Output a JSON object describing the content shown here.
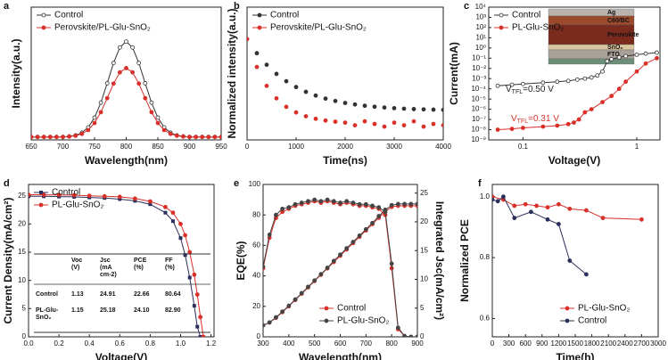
{
  "chart_data": [
    {
      "type": "line",
      "label": "a",
      "xlabel": "Wavelength(nm)",
      "ylabel": "Intensity(a.u.)",
      "xlim": [
        650,
        950
      ],
      "xticks": [
        650,
        700,
        750,
        800,
        850,
        900,
        950
      ],
      "ylim": [
        0,
        1.35
      ],
      "lines": true,
      "legend": "upper left",
      "x": [
        650,
        660,
        670,
        680,
        690,
        700,
        710,
        720,
        730,
        740,
        750,
        760,
        770,
        780,
        790,
        800,
        810,
        820,
        830,
        840,
        850,
        860,
        870,
        880,
        890,
        900,
        910,
        920,
        930,
        940,
        950
      ],
      "series": [
        {
          "name": "Control",
          "color": "#333333",
          "marker": "open-circle",
          "values": [
            0.03,
            0.03,
            0.03,
            0.03,
            0.03,
            0.03,
            0.036,
            0.046,
            0.073,
            0.127,
            0.227,
            0.379,
            0.576,
            0.782,
            0.94,
            1.0,
            0.94,
            0.782,
            0.576,
            0.379,
            0.227,
            0.127,
            0.073,
            0.046,
            0.036,
            0.03,
            0.03,
            0.03,
            0.03,
            0.03,
            0.03
          ]
        },
        {
          "name": "Perovskite/PL-Glu-SnO₂",
          "color": "#d9302a",
          "marker": "circle",
          "values": [
            0.03,
            0.03,
            0.03,
            0.03,
            0.03,
            0.03,
            0.034,
            0.042,
            0.061,
            0.1,
            0.172,
            0.282,
            0.424,
            0.573,
            0.687,
            0.73,
            0.687,
            0.573,
            0.424,
            0.282,
            0.172,
            0.1,
            0.061,
            0.042,
            0.034,
            0.03,
            0.03,
            0.03,
            0.03,
            0.03,
            0.03
          ]
        }
      ]
    },
    {
      "type": "scatter",
      "label": "b",
      "xlabel": "Time(ns)",
      "ylabel": "Normalized intensity(a.u.)",
      "xlim": [
        0,
        4000
      ],
      "xticks": [
        0,
        1000,
        2000,
        3000,
        4000
      ],
      "ylim": [
        0,
        1
      ],
      "lines": false,
      "legend": "upper left",
      "x": [
        0,
        200,
        400,
        600,
        800,
        1000,
        1200,
        1400,
        1600,
        1800,
        2000,
        2200,
        2400,
        2600,
        2800,
        3000,
        3200,
        3400,
        3600,
        3800,
        4000
      ],
      "series": [
        {
          "name": "Control",
          "color": "#333333",
          "marker": "circle",
          "values": [
            0.76,
            0.653,
            0.566,
            0.497,
            0.442,
            0.398,
            0.362,
            0.334,
            0.311,
            0.293,
            0.278,
            0.267,
            0.257,
            0.25,
            0.244,
            0.239,
            0.235,
            0.232,
            0.23,
            0.228,
            0.226
          ]
        },
        {
          "name": "Perovskite/PL-Glu-SnO₂",
          "color": "#d9302a",
          "marker": "circle",
          "values": [
            0.76,
            0.549,
            0.407,
            0.313,
            0.249,
            0.207,
            0.178,
            0.159,
            0.146,
            0.137,
            0.13,
            0.11,
            0.14,
            0.12,
            0.1,
            0.13,
            0.11,
            0.14,
            0.1,
            0.12,
            0.11
          ]
        }
      ]
    },
    {
      "type": "line",
      "label": "c",
      "xlabel": "Voltage(V)",
      "ylabel": "Current(mA)",
      "xscale": "log",
      "yscale": "log",
      "xlim": [
        0.05,
        1.6
      ],
      "xticks": [
        0.1,
        1
      ],
      "ylim": [
        1e-09,
        10000
      ],
      "lines": true,
      "legend": "upper left",
      "yticks": [
        {
          "value": 1e-09,
          "label": "10⁻⁹"
        },
        {
          "value": 1e-08,
          "label": "10⁻⁸"
        },
        {
          "value": 1e-07,
          "label": "10⁻⁷"
        },
        {
          "value": 1e-06,
          "label": "10⁻⁶"
        },
        {
          "value": 1e-05,
          "label": "10⁻⁵"
        },
        {
          "value": 0.0001,
          "label": "10⁻⁴"
        },
        {
          "value": 0.001,
          "label": "10⁻³"
        },
        {
          "value": 0.01,
          "label": "10⁻²"
        },
        {
          "value": 0.1,
          "label": "10⁻¹"
        },
        {
          "value": 1,
          "label": "10⁰"
        },
        {
          "value": 10,
          "label": "10¹"
        },
        {
          "value": 100,
          "label": "10²"
        },
        {
          "value": 1000,
          "label": "10³"
        },
        {
          "value": 10000,
          "label": "10⁴"
        }
      ],
      "series": [
        {
          "name": "Control",
          "color": "#333333",
          "marker": "open-circle",
          "x": [
            0.06,
            0.08,
            0.1,
            0.15,
            0.2,
            0.25,
            0.3,
            0.35,
            0.4,
            0.45,
            0.5,
            0.55,
            0.6,
            0.7,
            0.8,
            1.0,
            1.2,
            1.5
          ],
          "values": [
            0.0002,
            0.00025,
            0.0003,
            0.0004,
            0.0005,
            0.0006,
            0.0008,
            0.001,
            0.0013,
            0.002,
            0.005,
            0.05,
            0.08,
            0.12,
            0.16,
            0.22,
            0.28,
            0.35
          ]
        },
        {
          "name": "PL-Glu-SnO₂",
          "color": "#d9302a",
          "marker": "circle",
          "x": [
            0.06,
            0.08,
            0.1,
            0.15,
            0.2,
            0.25,
            0.28,
            0.31,
            0.35,
            0.4,
            0.5,
            0.6,
            0.7,
            0.8,
            1.0,
            1.2,
            1.5
          ],
          "values": [
            1e-08,
            1.2e-08,
            1.5e-08,
            2e-08,
            2.5e-08,
            3.5e-08,
            5e-08,
            1e-07,
            5e-07,
            1e-06,
            5e-06,
            2e-05,
            0.0001,
            0.0005,
            0.005,
            0.03,
            0.1
          ]
        }
      ],
      "annotations": [
        {
          "main": "V",
          "sub": "TFL",
          "rest": "=0.50 V"
        },
        {
          "main": "V",
          "sub": "TFL",
          "rest": "=0.31 V"
        }
      ],
      "inset_labels": [
        "Ag",
        "C60/BC",
        "Perovskite",
        "SnO₂",
        "FTO"
      ]
    },
    {
      "type": "line",
      "label": "d",
      "xlabel": "Voltage(V)",
      "ylabel": "Current Density(mA/cm²)",
      "xlim": [
        0,
        1.22
      ],
      "xticks": [
        {
          "value": 0,
          "label": "0.0"
        },
        0.2,
        0.4,
        0.6,
        0.8,
        {
          "value": 1,
          "label": "1.0"
        },
        1.2
      ],
      "ylim": [
        0,
        27
      ],
      "yticks": [
        0,
        5,
        10,
        15,
        20,
        25
      ],
      "lines": true,
      "legend": "upper left",
      "x": [
        0,
        0.1,
        0.2,
        0.3,
        0.4,
        0.5,
        0.6,
        0.7,
        0.8,
        0.9,
        0.95,
        1.0,
        1.03,
        1.06,
        1.09,
        1.11,
        1.13,
        1.15
      ],
      "series": [
        {
          "name": "Control",
          "color": "#2b2f5b",
          "marker": "square",
          "values": [
            24.91,
            24.9,
            24.85,
            24.8,
            24.7,
            24.6,
            24.4,
            24.1,
            23.5,
            22.0,
            20.5,
            17.5,
            14.5,
            10.5,
            5.5,
            1.8,
            0,
            null
          ]
        },
        {
          "name": "PL-Glu-SnO₂",
          "color": "#d9302a",
          "marker": "circle",
          "values": [
            25.18,
            25.17,
            25.15,
            25.1,
            25.0,
            24.9,
            24.8,
            24.5,
            24.0,
            23.0,
            22.0,
            20.0,
            18.0,
            15.0,
            11.0,
            7.5,
            3.5,
            0
          ]
        }
      ],
      "table": {
        "header": [
          [
            "Voc",
            "(V)"
          ],
          [
            "Jsc",
            "(mA",
            "cm-2)"
          ],
          [
            "PCE",
            "(%)"
          ],
          [
            "FF",
            "(%)"
          ]
        ],
        "rows": [
          {
            "label": [
              "Control"
            ],
            "cells": [
              "1.13",
              "24.91",
              "22.66",
              "80.64"
            ]
          },
          {
            "label": [
              "PL-Glu-",
              "SnO₂"
            ],
            "cells": [
              "1.15",
              "25.18",
              "24.10",
              "82.90"
            ]
          }
        ]
      }
    },
    {
      "type": "line",
      "label": "e",
      "xlabel": "Wavelength(nm)",
      "ylabel": "EQE(%)",
      "y2label": "Integrated Jsc(mA/cm²)",
      "xlim": [
        300,
        900
      ],
      "xticks": [
        300,
        400,
        500,
        600,
        700,
        800,
        900
      ],
      "ylim": [
        0,
        100
      ],
      "yticks": [
        0,
        20,
        40,
        60,
        80,
        100
      ],
      "y2lim": [
        0,
        26.5
      ],
      "y2ticks": [
        0,
        5,
        10,
        15,
        20,
        25
      ],
      "lines": true,
      "legend": "lower right",
      "x": [
        300,
        325,
        350,
        375,
        400,
        425,
        450,
        475,
        500,
        525,
        550,
        575,
        600,
        625,
        650,
        675,
        700,
        725,
        750,
        775,
        800,
        825,
        850,
        875,
        900
      ],
      "series": [
        {
          "name": "Control",
          "color": "#d9302a",
          "marker": "circle",
          "values": [
            45,
            65,
            78,
            82,
            84,
            86,
            87,
            88,
            89,
            88,
            89,
            88,
            87,
            88,
            87,
            86,
            86,
            85,
            84,
            80,
            45,
            5,
            0.5,
            0,
            0
          ],
          "integrated": [
            2.0,
            2.5,
            3.3,
            4.3,
            5.3,
            6.4,
            7.5,
            8.6,
            9.7,
            10.8,
            11.9,
            13.0,
            14.1,
            15.2,
            16.3,
            17.4,
            18.5,
            19.6,
            20.7,
            21.8,
            22.6,
            22.8,
            22.8,
            22.8,
            22.8
          ]
        },
        {
          "name": "PL-Glu-SnO₂",
          "color": "#444444",
          "marker": "circle",
          "values": [
            46,
            67,
            80,
            84,
            85,
            87,
            88,
            89,
            90,
            89,
            90,
            89,
            88,
            89,
            88,
            87,
            87,
            86,
            85,
            82,
            48,
            6,
            0.5,
            0,
            0
          ],
          "integrated": [
            2.0,
            2.5,
            3.4,
            4.4,
            5.4,
            6.5,
            7.6,
            8.7,
            9.8,
            10.9,
            12.0,
            13.2,
            14.3,
            15.4,
            16.5,
            17.6,
            18.7,
            19.8,
            21.0,
            22.1,
            22.9,
            23.1,
            23.1,
            23.1,
            23.1
          ]
        }
      ]
    },
    {
      "type": "line",
      "label": "f",
      "xlabel": "Time(h)",
      "ylabel": "Normalized PCE",
      "xlim": [
        0,
        3000
      ],
      "xticks": [
        0,
        300,
        600,
        900,
        1200,
        1500,
        1800,
        2100,
        2400,
        2700,
        3000
      ],
      "ylim": [
        0.54,
        1.04
      ],
      "yticks": [
        0.6,
        0.8,
        {
          "value": 1,
          "label": "1.0"
        }
      ],
      "lines": true,
      "legend": "lower right",
      "series": [
        {
          "name": "PL-Glu-SnO₂",
          "color": "#d9302a",
          "marker": "circle",
          "x": [
            0,
            200,
            400,
            600,
            800,
            1000,
            1200,
            1400,
            1700,
            2000,
            2700
          ],
          "values": [
            1.0,
            0.99,
            0.97,
            0.975,
            0.97,
            0.965,
            0.975,
            0.96,
            0.955,
            0.93,
            0.925
          ]
        },
        {
          "name": "Control",
          "color": "#2b2f5b",
          "marker": "circle",
          "x": [
            0,
            100,
            200,
            400,
            700,
            1000,
            1200,
            1400,
            1700
          ],
          "values": [
            0.99,
            0.985,
            1.0,
            0.93,
            0.95,
            0.925,
            0.91,
            0.79,
            0.745
          ]
        }
      ]
    }
  ]
}
